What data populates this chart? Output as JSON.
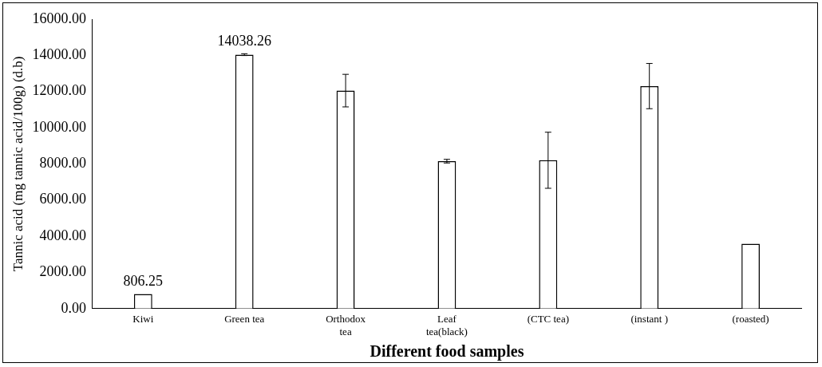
{
  "chart_data": {
    "type": "bar",
    "xlabel": "Different food samples",
    "ylabel": "Tannic acid (mg tannic acid/100g) (d.b)",
    "categories": [
      "Kiwi",
      "Green tea",
      "Orthodox tea",
      "Leaf tea(black)",
      "(CTC tea)",
      "(instant )",
      "(roasted)"
    ],
    "values": [
      806.25,
      14038.26,
      12050,
      8150,
      8200,
      12300,
      3580
    ],
    "errors": [
      null,
      50,
      900,
      100,
      1550,
      1250,
      null
    ],
    "value_labels": [
      "806.25",
      "14038.26",
      null,
      null,
      null,
      null,
      null
    ],
    "color": "#ffffff",
    "ylim": [
      0,
      16000
    ],
    "yticks": [
      {
        "value": 0,
        "label": "0.00"
      },
      {
        "value": 2000,
        "label": "2000.00"
      },
      {
        "value": 4000,
        "label": "4000.00"
      },
      {
        "value": 6000,
        "label": "6000.00"
      },
      {
        "value": 8000,
        "label": "8000.00"
      },
      {
        "value": 10000,
        "label": "10000.00"
      },
      {
        "value": 12000,
        "label": "12000.00"
      },
      {
        "value": 14000,
        "label": "14000.00"
      },
      {
        "value": 16000,
        "label": "16000.00"
      }
    ],
    "grid": false,
    "legend": false
  }
}
